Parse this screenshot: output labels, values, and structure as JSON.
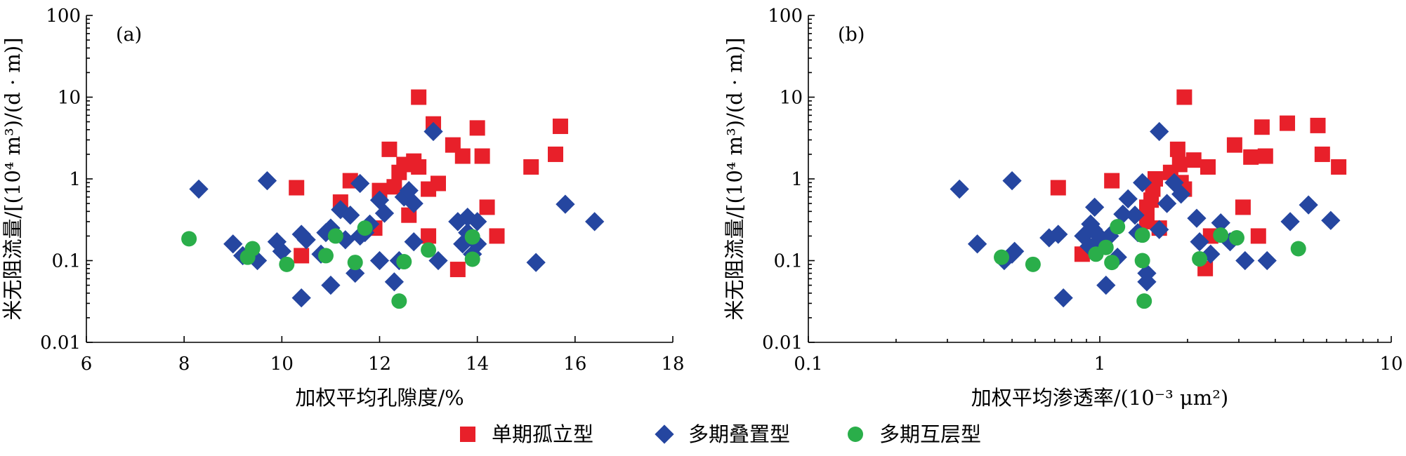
{
  "chart_data": [
    {
      "type": "scatter",
      "panel_label": "(a)",
      "xlabel": "加权平均孔隙度/%",
      "ylabel": "米无阻流量/[(10⁴ m³)/(d · m)]",
      "x_scale": "linear",
      "y_scale": "log",
      "xlim": [
        6,
        18
      ],
      "ylim": [
        0.01,
        100
      ],
      "x_ticks": [
        "6",
        "8",
        "10",
        "12",
        "14",
        "16",
        "18"
      ],
      "y_ticks": [
        "0.01",
        "0.1",
        "1",
        "10",
        "100"
      ],
      "grid": false,
      "series": [
        {
          "name": "单期孤立型",
          "marker": "square",
          "color": "#e8202a",
          "points": [
            [
              10.3,
              0.78
            ],
            [
              10.4,
              0.115
            ],
            [
              11.2,
              0.52
            ],
            [
              11.4,
              0.95
            ],
            [
              11.9,
              0.25
            ],
            [
              12.0,
              0.72
            ],
            [
              12.2,
              2.3
            ],
            [
              12.3,
              0.8
            ],
            [
              12.4,
              1.2
            ],
            [
              12.5,
              1.5
            ],
            [
              12.6,
              0.36
            ],
            [
              12.7,
              1.65
            ],
            [
              12.8,
              1.4
            ],
            [
              12.8,
              10.0
            ],
            [
              13.0,
              0.2
            ],
            [
              13.0,
              0.75
            ],
            [
              13.1,
              4.7
            ],
            [
              13.2,
              0.88
            ],
            [
              13.5,
              2.6
            ],
            [
              13.6,
              0.078
            ],
            [
              13.7,
              1.9
            ],
            [
              14.0,
              4.2
            ],
            [
              14.1,
              1.9
            ],
            [
              14.2,
              0.45
            ],
            [
              14.4,
              0.2
            ],
            [
              15.1,
              1.4
            ],
            [
              15.6,
              2.0
            ],
            [
              15.7,
              4.4
            ]
          ]
        },
        {
          "name": "多期叠置型",
          "marker": "diamond",
          "color": "#2546a0",
          "points": [
            [
              8.3,
              0.75
            ],
            [
              9.0,
              0.16
            ],
            [
              9.2,
              0.115
            ],
            [
              9.5,
              0.1
            ],
            [
              9.7,
              0.95
            ],
            [
              9.9,
              0.17
            ],
            [
              10.0,
              0.13
            ],
            [
              10.4,
              0.035
            ],
            [
              10.4,
              0.21
            ],
            [
              10.5,
              0.18
            ],
            [
              10.8,
              0.12
            ],
            [
              10.9,
              0.22
            ],
            [
              11.0,
              0.25
            ],
            [
              11.0,
              0.05
            ],
            [
              11.2,
              0.42
            ],
            [
              11.3,
              0.18
            ],
            [
              11.4,
              0.36
            ],
            [
              11.5,
              0.07
            ],
            [
              11.6,
              0.88
            ],
            [
              11.6,
              0.2
            ],
            [
              11.7,
              0.22
            ],
            [
              11.8,
              0.28
            ],
            [
              12.0,
              0.1
            ],
            [
              12.0,
              0.55
            ],
            [
              12.1,
              0.38
            ],
            [
              12.3,
              0.055
            ],
            [
              12.4,
              0.1
            ],
            [
              12.5,
              0.6
            ],
            [
              12.6,
              0.72
            ],
            [
              12.7,
              0.5
            ],
            [
              12.7,
              0.17
            ],
            [
              13.1,
              3.8
            ],
            [
              13.2,
              0.1
            ],
            [
              13.6,
              0.3
            ],
            [
              13.7,
              0.16
            ],
            [
              13.8,
              0.34
            ],
            [
              13.8,
              0.22
            ],
            [
              13.9,
              0.12
            ],
            [
              14.0,
              0.3
            ],
            [
              14.0,
              0.16
            ],
            [
              15.2,
              0.095
            ],
            [
              15.8,
              0.49
            ],
            [
              16.4,
              0.3
            ]
          ]
        },
        {
          "name": "多期互层型",
          "marker": "circle",
          "color": "#2aae4a",
          "points": [
            [
              8.1,
              0.185
            ],
            [
              9.3,
              0.11
            ],
            [
              9.4,
              0.14
            ],
            [
              10.1,
              0.09
            ],
            [
              10.9,
              0.115
            ],
            [
              11.1,
              0.2
            ],
            [
              11.5,
              0.095
            ],
            [
              11.7,
              0.25
            ],
            [
              12.4,
              0.032
            ],
            [
              12.5,
              0.097
            ],
            [
              13.0,
              0.135
            ],
            [
              13.9,
              0.104
            ],
            [
              13.9,
              0.195
            ]
          ]
        }
      ]
    },
    {
      "type": "scatter",
      "panel_label": "(b)",
      "xlabel": "加权平均渗透率/(10⁻³ μm²)",
      "ylabel": "米无阻流量/[(10⁴ m³)/(d · m)]",
      "x_scale": "log",
      "y_scale": "log",
      "xlim": [
        0.1,
        10
      ],
      "ylim": [
        0.01,
        100
      ],
      "x_ticks": [
        "0.1",
        "1",
        "10"
      ],
      "y_ticks": [
        "0.01",
        "0.1",
        "1",
        "10",
        "100"
      ],
      "grid": false,
      "series": [
        {
          "name": "单期孤立型",
          "marker": "square",
          "color": "#e8202a",
          "points": [
            [
              0.72,
              0.78
            ],
            [
              0.87,
              0.12
            ],
            [
              1.1,
              0.95
            ],
            [
              1.45,
              0.45
            ],
            [
              1.45,
              0.3
            ],
            [
              1.5,
              0.55
            ],
            [
              1.52,
              0.75
            ],
            [
              1.55,
              1.0
            ],
            [
              1.6,
              0.25
            ],
            [
              1.75,
              1.2
            ],
            [
              1.85,
              2.3
            ],
            [
              1.88,
              1.5
            ],
            [
              1.9,
              0.9
            ],
            [
              1.95,
              0.75
            ],
            [
              1.95,
              10.0
            ],
            [
              2.1,
              1.7
            ],
            [
              2.3,
              0.08
            ],
            [
              2.35,
              1.4
            ],
            [
              2.4,
              0.2
            ],
            [
              2.9,
              2.6
            ],
            [
              3.1,
              0.45
            ],
            [
              3.3,
              1.85
            ],
            [
              3.5,
              0.2
            ],
            [
              3.6,
              4.3
            ],
            [
              3.7,
              1.9
            ],
            [
              4.4,
              4.8
            ],
            [
              5.6,
              4.5
            ],
            [
              5.8,
              2.0
            ],
            [
              6.6,
              1.4
            ]
          ]
        },
        {
          "name": "多期叠置型",
          "marker": "diamond",
          "color": "#2546a0",
          "points": [
            [
              0.33,
              0.75
            ],
            [
              0.38,
              0.16
            ],
            [
              0.47,
              0.1
            ],
            [
              0.5,
              0.12
            ],
            [
              0.5,
              0.95
            ],
            [
              0.51,
              0.13
            ],
            [
              0.67,
              0.19
            ],
            [
              0.72,
              0.21
            ],
            [
              0.75,
              0.035
            ],
            [
              0.88,
              0.2
            ],
            [
              0.92,
              0.15
            ],
            [
              0.93,
              0.28
            ],
            [
              0.95,
              0.24
            ],
            [
              0.96,
              0.45
            ],
            [
              0.98,
              0.21
            ],
            [
              1.0,
              0.18
            ],
            [
              1.05,
              0.05
            ],
            [
              1.08,
              0.2
            ],
            [
              1.15,
              0.11
            ],
            [
              1.2,
              0.37
            ],
            [
              1.25,
              0.57
            ],
            [
              1.32,
              0.36
            ],
            [
              1.35,
              0.22
            ],
            [
              1.4,
              0.9
            ],
            [
              1.45,
              0.07
            ],
            [
              1.45,
              0.055
            ],
            [
              1.6,
              3.8
            ],
            [
              1.6,
              0.24
            ],
            [
              1.7,
              0.5
            ],
            [
              1.8,
              0.9
            ],
            [
              1.9,
              0.65
            ],
            [
              2.15,
              0.33
            ],
            [
              2.2,
              0.17
            ],
            [
              2.4,
              0.12
            ],
            [
              2.6,
              0.29
            ],
            [
              2.8,
              0.17
            ],
            [
              3.15,
              0.1
            ],
            [
              3.75,
              0.1
            ],
            [
              4.5,
              0.3
            ],
            [
              5.2,
              0.48
            ],
            [
              6.2,
              0.31
            ]
          ]
        },
        {
          "name": "多期互层型",
          "marker": "circle",
          "color": "#2aae4a",
          "points": [
            [
              0.46,
              0.11
            ],
            [
              0.59,
              0.09
            ],
            [
              0.97,
              0.12
            ],
            [
              1.05,
              0.145
            ],
            [
              1.1,
              0.095
            ],
            [
              1.15,
              0.26
            ],
            [
              1.4,
              0.205
            ],
            [
              1.4,
              0.1
            ],
            [
              1.42,
              0.032
            ],
            [
              2.2,
              0.105
            ],
            [
              2.6,
              0.205
            ],
            [
              2.95,
              0.19
            ],
            [
              4.8,
              0.14
            ]
          ]
        }
      ]
    }
  ],
  "legend": {
    "placement": "bottom-center",
    "items": [
      {
        "label": "单期孤立型",
        "marker": "square",
        "color": "#e8202a"
      },
      {
        "label": "多期叠置型",
        "marker": "diamond",
        "color": "#2546a0"
      },
      {
        "label": "多期互层型",
        "marker": "circle",
        "color": "#2aae4a"
      }
    ]
  }
}
